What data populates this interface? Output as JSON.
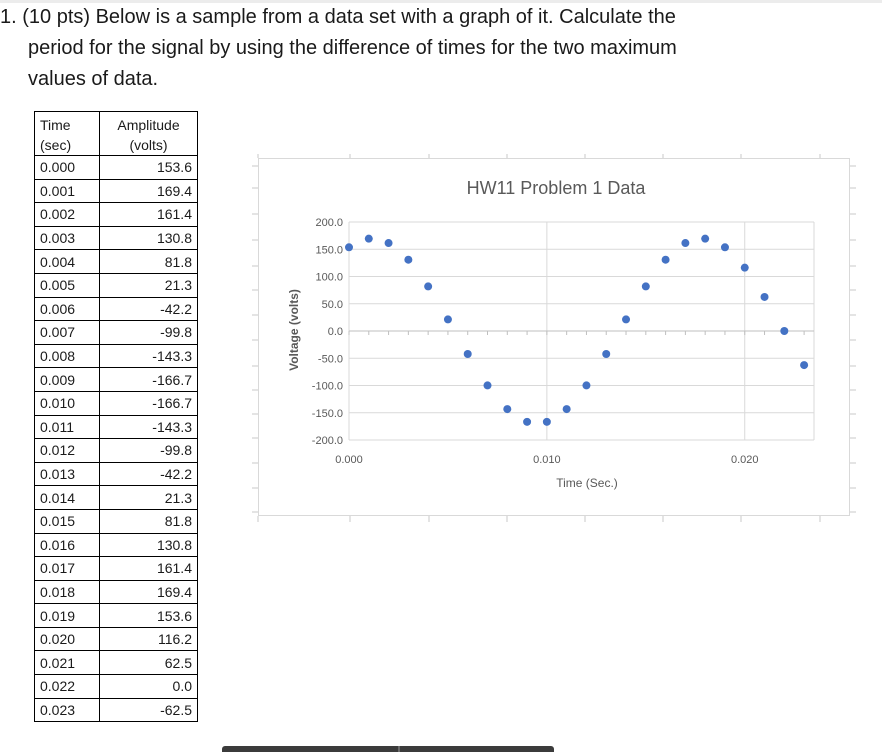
{
  "question": {
    "line1": "1. (10 pts) Below is a sample from a data set with a graph of it. Calculate the",
    "line2": "period for the signal by using the difference of times for the two maximum",
    "line3": "values of data."
  },
  "table": {
    "headers": {
      "time_line1": "Time",
      "time_line2": "(sec)",
      "amp_line1": "Amplitude",
      "amp_line2": "(volts)"
    },
    "rows": [
      [
        "0.000",
        "153.6"
      ],
      [
        "0.001",
        "169.4"
      ],
      [
        "0.002",
        "161.4"
      ],
      [
        "0.003",
        "130.8"
      ],
      [
        "0.004",
        "81.8"
      ],
      [
        "0.005",
        "21.3"
      ],
      [
        "0.006",
        "-42.2"
      ],
      [
        "0.007",
        "-99.8"
      ],
      [
        "0.008",
        "-143.3"
      ],
      [
        "0.009",
        "-166.7"
      ],
      [
        "0.010",
        "-166.7"
      ],
      [
        "0.011",
        "-143.3"
      ],
      [
        "0.012",
        "-99.8"
      ],
      [
        "0.013",
        "-42.2"
      ],
      [
        "0.014",
        "21.3"
      ],
      [
        "0.015",
        "81.8"
      ],
      [
        "0.016",
        "130.8"
      ],
      [
        "0.017",
        "161.4"
      ],
      [
        "0.018",
        "169.4"
      ],
      [
        "0.019",
        "153.6"
      ],
      [
        "0.020",
        "116.2"
      ],
      [
        "0.021",
        "62.5"
      ],
      [
        "0.022",
        "0.0"
      ],
      [
        "0.023",
        "-62.5"
      ]
    ]
  },
  "chart_data": {
    "type": "scatter",
    "title": "HW11 Problem 1 Data",
    "xlabel": "Time (Sec.)",
    "ylabel": "Voltage (volts)",
    "xlim": [
      0.0,
      0.0235
    ],
    "ylim": [
      -200,
      200
    ],
    "x_ticks": [
      "0.000",
      "0.010",
      "0.020"
    ],
    "x_tick_values": [
      0.0,
      0.01,
      0.02
    ],
    "y_ticks": [
      "200.0",
      "150.0",
      "100.0",
      "50.0",
      "0.0",
      "-50.0",
      "-100.0",
      "-150.0",
      "-200.0"
    ],
    "y_tick_values": [
      200,
      150,
      100,
      50,
      0,
      -50,
      -100,
      -150,
      -200
    ],
    "grid": true,
    "marker_color": "#4472C4",
    "points": {
      "x": [
        0.0,
        0.001,
        0.002,
        0.003,
        0.004,
        0.005,
        0.006,
        0.007,
        0.008,
        0.009,
        0.01,
        0.011,
        0.012,
        0.013,
        0.014,
        0.015,
        0.016,
        0.017,
        0.018,
        0.019,
        0.02,
        0.021,
        0.022,
        0.023
      ],
      "y": [
        153.6,
        169.4,
        161.4,
        130.8,
        81.8,
        21.3,
        -42.2,
        -99.8,
        -143.3,
        -166.7,
        -166.7,
        -143.3,
        -99.8,
        -42.2,
        21.3,
        81.8,
        130.8,
        161.4,
        169.4,
        153.6,
        116.2,
        62.5,
        0.0,
        -62.5
      ]
    }
  }
}
